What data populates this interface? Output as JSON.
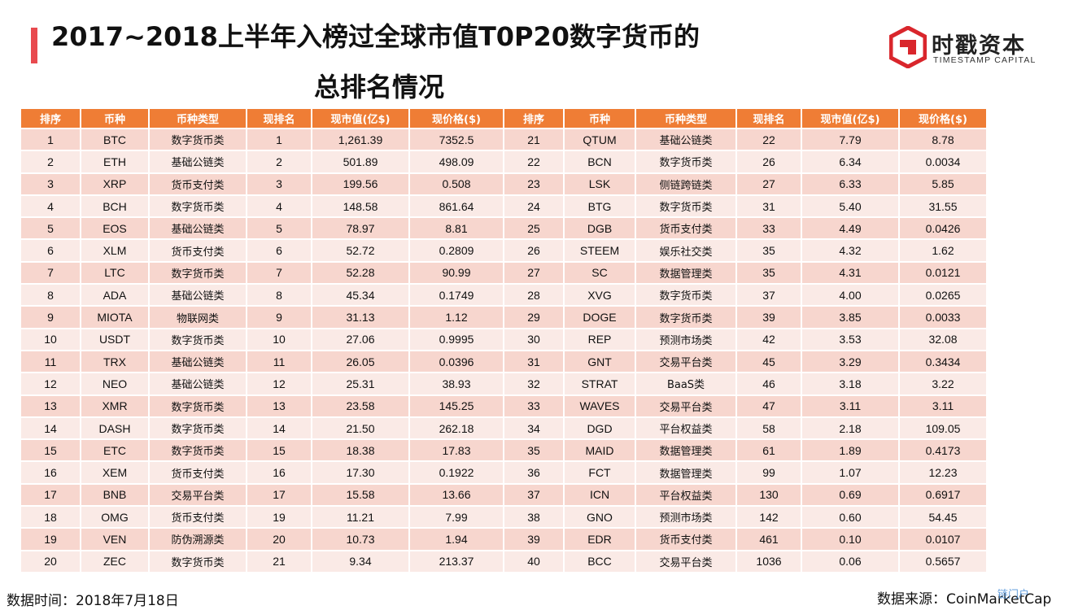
{
  "title": {
    "line1": "2017~2018上半年入榜过全球市值T0P20数字货币的",
    "line2": "总排名情况"
  },
  "logo": {
    "name_cn": "时戳资本",
    "name_en": "TIMESTAMP CAPITAL",
    "brand_color": "#d9262c"
  },
  "accent_color": "#e84a4f",
  "header_color": "#ef7d35",
  "table": {
    "headers": [
      "排序",
      "币种",
      "币种类型",
      "现排名",
      "现市值(亿$)",
      "现价格($)",
      "排序",
      "币种",
      "币种类型",
      "现排名",
      "现市值(亿$)",
      "现价格($)"
    ],
    "rows": [
      [
        "1",
        "BTC",
        "数字货币类",
        "1",
        "1,261.39",
        "7352.5",
        "21",
        "QTUM",
        "基础公链类",
        "22",
        "7.79",
        "8.78"
      ],
      [
        "2",
        "ETH",
        "基础公链类",
        "2",
        "501.89",
        "498.09",
        "22",
        "BCN",
        "数字货币类",
        "26",
        "6.34",
        "0.0034"
      ],
      [
        "3",
        "XRP",
        "货币支付类",
        "3",
        "199.56",
        "0.508",
        "23",
        "LSK",
        "侧链跨链类",
        "27",
        "6.33",
        "5.85"
      ],
      [
        "4",
        "BCH",
        "数字货币类",
        "4",
        "148.58",
        "861.64",
        "24",
        "BTG",
        "数字货币类",
        "31",
        "5.40",
        "31.55"
      ],
      [
        "5",
        "EOS",
        "基础公链类",
        "5",
        "78.97",
        "8.81",
        "25",
        "DGB",
        "货币支付类",
        "33",
        "4.49",
        "0.0426"
      ],
      [
        "6",
        "XLM",
        "货币支付类",
        "6",
        "52.72",
        "0.2809",
        "26",
        "STEEM",
        "娱乐社交类",
        "35",
        "4.32",
        "1.62"
      ],
      [
        "7",
        "LTC",
        "数字货币类",
        "7",
        "52.28",
        "90.99",
        "27",
        "SC",
        "数据管理类",
        "35",
        "4.31",
        "0.0121"
      ],
      [
        "8",
        "ADA",
        "基础公链类",
        "8",
        "45.34",
        "0.1749",
        "28",
        "XVG",
        "数字货币类",
        "37",
        "4.00",
        "0.0265"
      ],
      [
        "9",
        "MIOTA",
        "物联网类",
        "9",
        "31.13",
        "1.12",
        "29",
        "DOGE",
        "数字货币类",
        "39",
        "3.85",
        "0.0033"
      ],
      [
        "10",
        "USDT",
        "数字货币类",
        "10",
        "27.06",
        "0.9995",
        "30",
        "REP",
        "预测市场类",
        "42",
        "3.53",
        "32.08"
      ],
      [
        "11",
        "TRX",
        "基础公链类",
        "11",
        "26.05",
        "0.0396",
        "31",
        "GNT",
        "交易平台类",
        "45",
        "3.29",
        "0.3434"
      ],
      [
        "12",
        "NEO",
        "基础公链类",
        "12",
        "25.31",
        "38.93",
        "32",
        "STRAT",
        "BaaS类",
        "46",
        "3.18",
        "3.22"
      ],
      [
        "13",
        "XMR",
        "数字货币类",
        "13",
        "23.58",
        "145.25",
        "33",
        "WAVES",
        "交易平台类",
        "47",
        "3.11",
        "3.11"
      ],
      [
        "14",
        "DASH",
        "数字货币类",
        "14",
        "21.50",
        "262.18",
        "34",
        "DGD",
        "平台权益类",
        "58",
        "2.18",
        "109.05"
      ],
      [
        "15",
        "ETC",
        "数字货币类",
        "15",
        "18.38",
        "17.83",
        "35",
        "MAID",
        "数据管理类",
        "61",
        "1.89",
        "0.4173"
      ],
      [
        "16",
        "XEM",
        "货币支付类",
        "16",
        "17.30",
        "0.1922",
        "36",
        "FCT",
        "数据管理类",
        "99",
        "1.07",
        "12.23"
      ],
      [
        "17",
        "BNB",
        "交易平台类",
        "17",
        "15.58",
        "13.66",
        "37",
        "ICN",
        "平台权益类",
        "130",
        "0.69",
        "0.6917"
      ],
      [
        "18",
        "OMG",
        "货币支付类",
        "19",
        "11.21",
        "7.99",
        "38",
        "GNO",
        "预测市场类",
        "142",
        "0.60",
        "54.45"
      ],
      [
        "19",
        "VEN",
        "防伪溯源类",
        "20",
        "10.73",
        "1.94",
        "39",
        "EDR",
        "货币支付类",
        "461",
        "0.10",
        "0.0107"
      ],
      [
        "20",
        "ZEC",
        "数字货币类",
        "21",
        "9.34",
        "213.37",
        "40",
        "BCC",
        "交易平台类",
        "1036",
        "0.06",
        "0.5657"
      ]
    ]
  },
  "footer": {
    "date_note": "数据时间：2018年7月18日",
    "source_note": "数据来源：CoinMarketCap",
    "watermark": "链门户"
  }
}
